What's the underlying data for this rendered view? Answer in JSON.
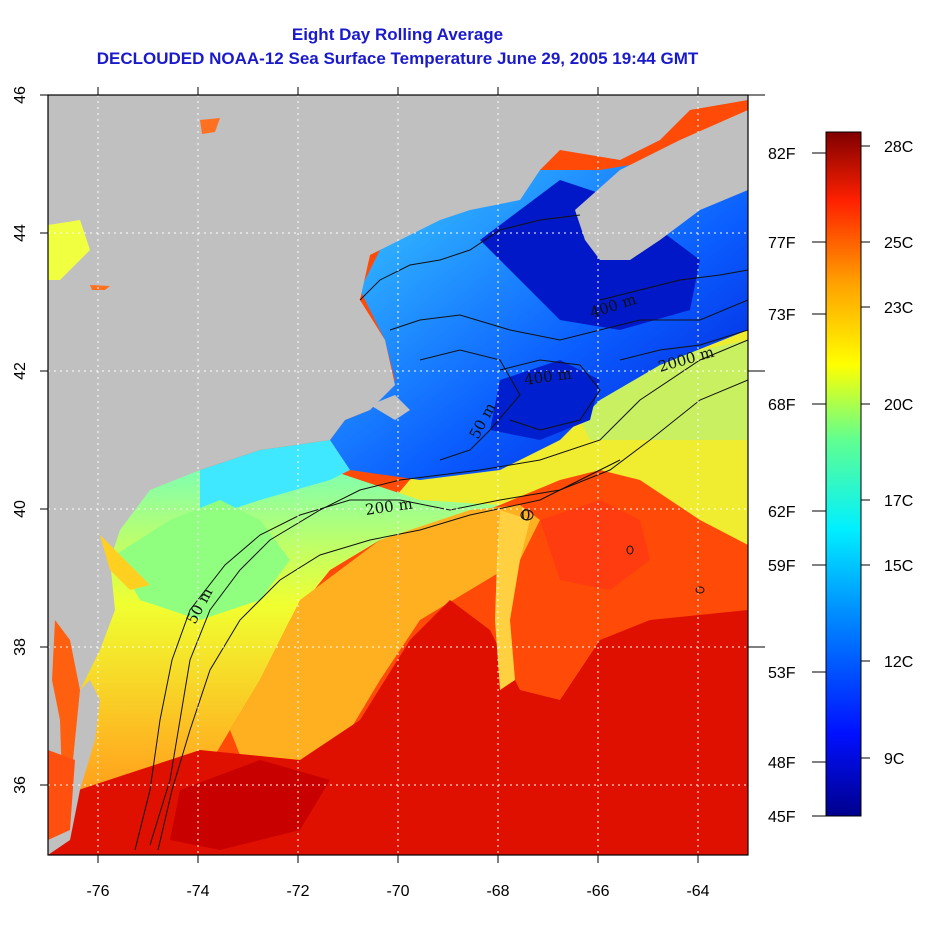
{
  "title": "Eight Day Rolling Average",
  "subtitle": "DECLOUDED NOAA-12 Sea Surface Temperature June 29, 2005 19:44 GMT",
  "map": {
    "lon_range": [
      -77,
      -63
    ],
    "lat_range": [
      35,
      46
    ],
    "lon_ticks": [
      "-76",
      "-74",
      "-72",
      "-70",
      "-68",
      "-66",
      "-64"
    ],
    "lat_ticks": [
      "36",
      "38",
      "40",
      "42",
      "44",
      "46"
    ],
    "grid": true,
    "land_color": "#c0c0c0"
  },
  "contour_labels": [
    "50 m",
    "200 m",
    "400 m",
    "2000 m",
    "400 m",
    "50 m",
    "0"
  ],
  "fahrenheit_ticks": [
    "82F",
    "77F",
    "73F",
    "68F",
    "62F",
    "59F",
    "53F",
    "48F",
    "45F"
  ],
  "colorbar": {
    "celsius_ticks": [
      "28C",
      "25C",
      "23C",
      "20C",
      "17C",
      "15C",
      "12C",
      "9C"
    ],
    "colors": [
      "#000080",
      "#0000ff",
      "#0080ff",
      "#00ffff",
      "#80ff80",
      "#ffff00",
      "#ff8000",
      "#ff0000",
      "#800000"
    ]
  }
}
